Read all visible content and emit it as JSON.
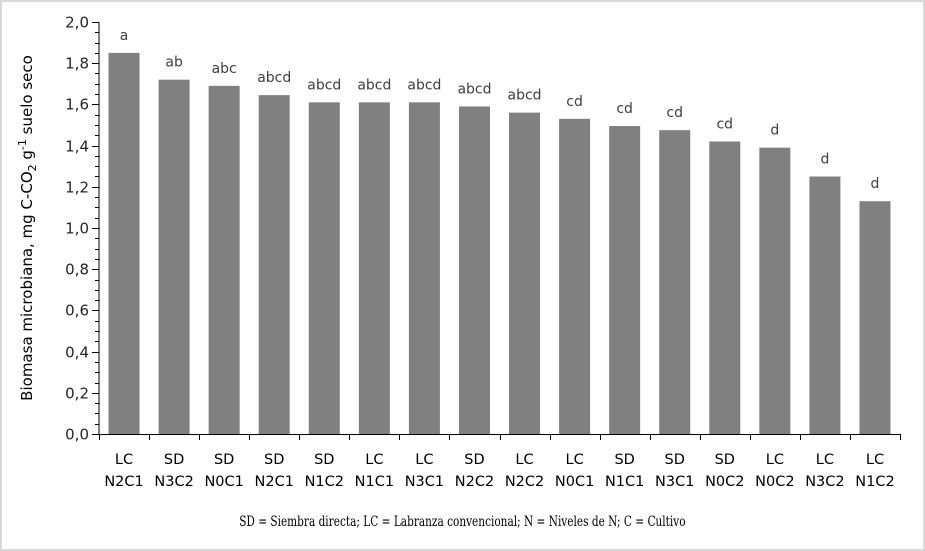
{
  "chart_data": {
    "type": "bar",
    "title": "",
    "xlabel": "",
    "ylabel": "Biomasa microbiana, mg C-CO2 g-1 suelo seco",
    "ylabel_parts": {
      "main": "Biomasa microbiana, mg C-CO",
      "sub": "2",
      "mid": " g",
      "sup": "-1",
      "end": " suelo seco"
    },
    "ylim": [
      0,
      2.0
    ],
    "y_ticks": [
      "0,0",
      "0,2",
      "0,4",
      "0,6",
      "0,8",
      "1,0",
      "1,2",
      "1,4",
      "1,6",
      "1,8",
      "2,0"
    ],
    "y_tick_values": [
      0,
      0.2,
      0.4,
      0.6,
      0.8,
      1.0,
      1.2,
      1.4,
      1.6,
      1.8,
      2.0
    ],
    "minor_ticks_step": 0.05,
    "grid": false,
    "legend": null,
    "bar_color": "#808080",
    "categories": [
      [
        "LC",
        "N2C1"
      ],
      [
        "SD",
        "N3C2"
      ],
      [
        "SD",
        "N0C1"
      ],
      [
        "SD",
        "N2C1"
      ],
      [
        "SD",
        "N1C2"
      ],
      [
        "LC",
        "N1C1"
      ],
      [
        "LC",
        "N3C1"
      ],
      [
        "SD",
        "N2C2"
      ],
      [
        "LC",
        "N2C2"
      ],
      [
        "LC",
        "N0C1"
      ],
      [
        "SD",
        "N1C1"
      ],
      [
        "SD",
        "N3C1"
      ],
      [
        "SD",
        "N0C2"
      ],
      [
        "LC",
        "N0C2"
      ],
      [
        "LC",
        "N3C2"
      ],
      [
        "LC",
        "N1C2"
      ]
    ],
    "values": [
      1.85,
      1.72,
      1.69,
      1.645,
      1.61,
      1.61,
      1.61,
      1.59,
      1.56,
      1.53,
      1.495,
      1.475,
      1.42,
      1.39,
      1.25,
      1.13
    ],
    "annotations": [
      "a",
      "ab",
      "abc",
      "abcd",
      "abcd",
      "abcd",
      "abcd",
      "abcd",
      "abcd",
      "cd",
      "cd",
      "cd",
      "cd",
      "d",
      "d",
      "d"
    ]
  },
  "footnote": "SD = Siembra directa; LC = Labranza convencional; N = Niveles de N; C = Cultivo"
}
